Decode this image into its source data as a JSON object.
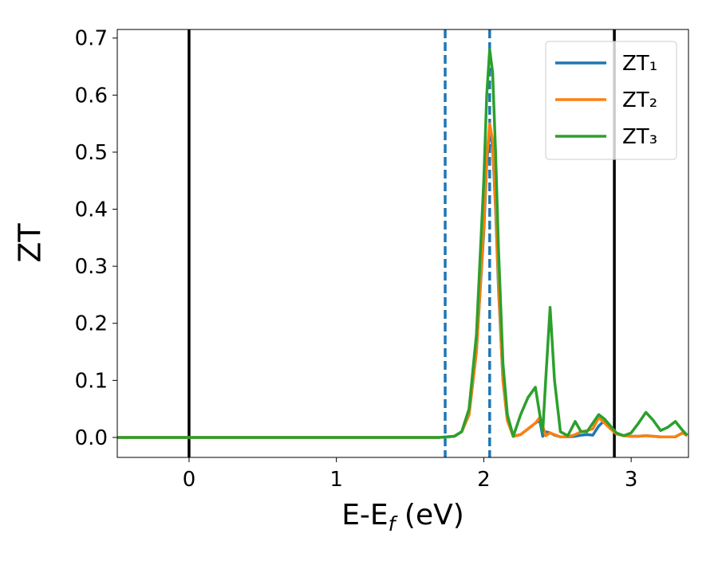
{
  "chart_data": {
    "type": "line",
    "xlabel": {
      "base": "E-E",
      "sub": "f",
      "rest": " (eV)"
    },
    "ylabel": "ZT",
    "x": [
      -0.49,
      0,
      1,
      1.7,
      1.8,
      1.85,
      1.9,
      1.95,
      2.0,
      2.02,
      2.04,
      2.06,
      2.08,
      2.1,
      2.13,
      2.16,
      2.2,
      2.25,
      2.3,
      2.35,
      2.38,
      2.4,
      2.42,
      2.45,
      2.48,
      2.52,
      2.57,
      2.62,
      2.66,
      2.7,
      2.74,
      2.78,
      2.82,
      2.86,
      2.9,
      2.95,
      3.0,
      3.05,
      3.1,
      3.15,
      3.2,
      3.25,
      3.3,
      3.35,
      3.38
    ],
    "series": [
      {
        "name": "ZT₁",
        "color": "#1f77b4",
        "values": [
          0,
          0,
          0,
          0,
          0.002,
          0.01,
          0.04,
          0.15,
          0.36,
          0.48,
          0.54,
          0.51,
          0.4,
          0.26,
          0.1,
          0.03,
          0.002,
          0.005,
          0.015,
          0.025,
          0.03,
          0.002,
          0.01,
          0.008,
          0.004,
          0.001,
          0.001,
          0.002,
          0.004,
          0.005,
          0.004,
          0.02,
          0.03,
          0.018,
          0.007,
          0.003,
          0.002,
          0.002,
          0.003,
          0.002,
          0.001,
          0.001,
          0.001,
          0.008,
          0.003
        ]
      },
      {
        "name": "ZT₂",
        "color": "#ff7f0e",
        "values": [
          0,
          0,
          0,
          0,
          0.002,
          0.01,
          0.04,
          0.15,
          0.37,
          0.49,
          0.55,
          0.52,
          0.41,
          0.27,
          0.1,
          0.03,
          0.002,
          0.005,
          0.015,
          0.025,
          0.035,
          0.02,
          0.003,
          0.008,
          0.005,
          0.001,
          0.001,
          0.005,
          0.01,
          0.012,
          0.015,
          0.035,
          0.025,
          0.015,
          0.006,
          0.003,
          0.002,
          0.002,
          0.003,
          0.002,
          0.001,
          0.001,
          0.001,
          0.008,
          0.003
        ]
      },
      {
        "name": "ZT₃",
        "color": "#2ca02c",
        "values": [
          0,
          0,
          0,
          0,
          0.002,
          0.01,
          0.05,
          0.18,
          0.45,
          0.6,
          0.68,
          0.64,
          0.5,
          0.33,
          0.13,
          0.04,
          0.002,
          0.04,
          0.07,
          0.088,
          0.04,
          0.01,
          0.1,
          0.228,
          0.1,
          0.01,
          0.003,
          0.028,
          0.01,
          0.01,
          0.025,
          0.04,
          0.032,
          0.02,
          0.008,
          0.003,
          0.008,
          0.025,
          0.044,
          0.03,
          0.012,
          0.018,
          0.028,
          0.012,
          0.004
        ]
      }
    ],
    "vlines": [
      {
        "x": 0,
        "color": "#000000",
        "dashed": false
      },
      {
        "x": 2.886,
        "color": "#000000",
        "dashed": false
      },
      {
        "x": 1.738,
        "color": "#1f77b4",
        "dashed": true
      },
      {
        "x": 2.04,
        "color": "#1f77b4",
        "dashed": true
      }
    ],
    "xlim": [
      -0.487,
      3.389
    ],
    "ylim": [
      -0.035,
      0.715
    ],
    "xticks": [
      0,
      1,
      2,
      3
    ],
    "yticks": [
      {
        "value": 0,
        "label": "0.0"
      },
      0.1,
      0.2,
      0.3,
      0.4,
      0.5,
      0.6,
      0.7
    ],
    "grid": false,
    "legend": "upper right"
  }
}
